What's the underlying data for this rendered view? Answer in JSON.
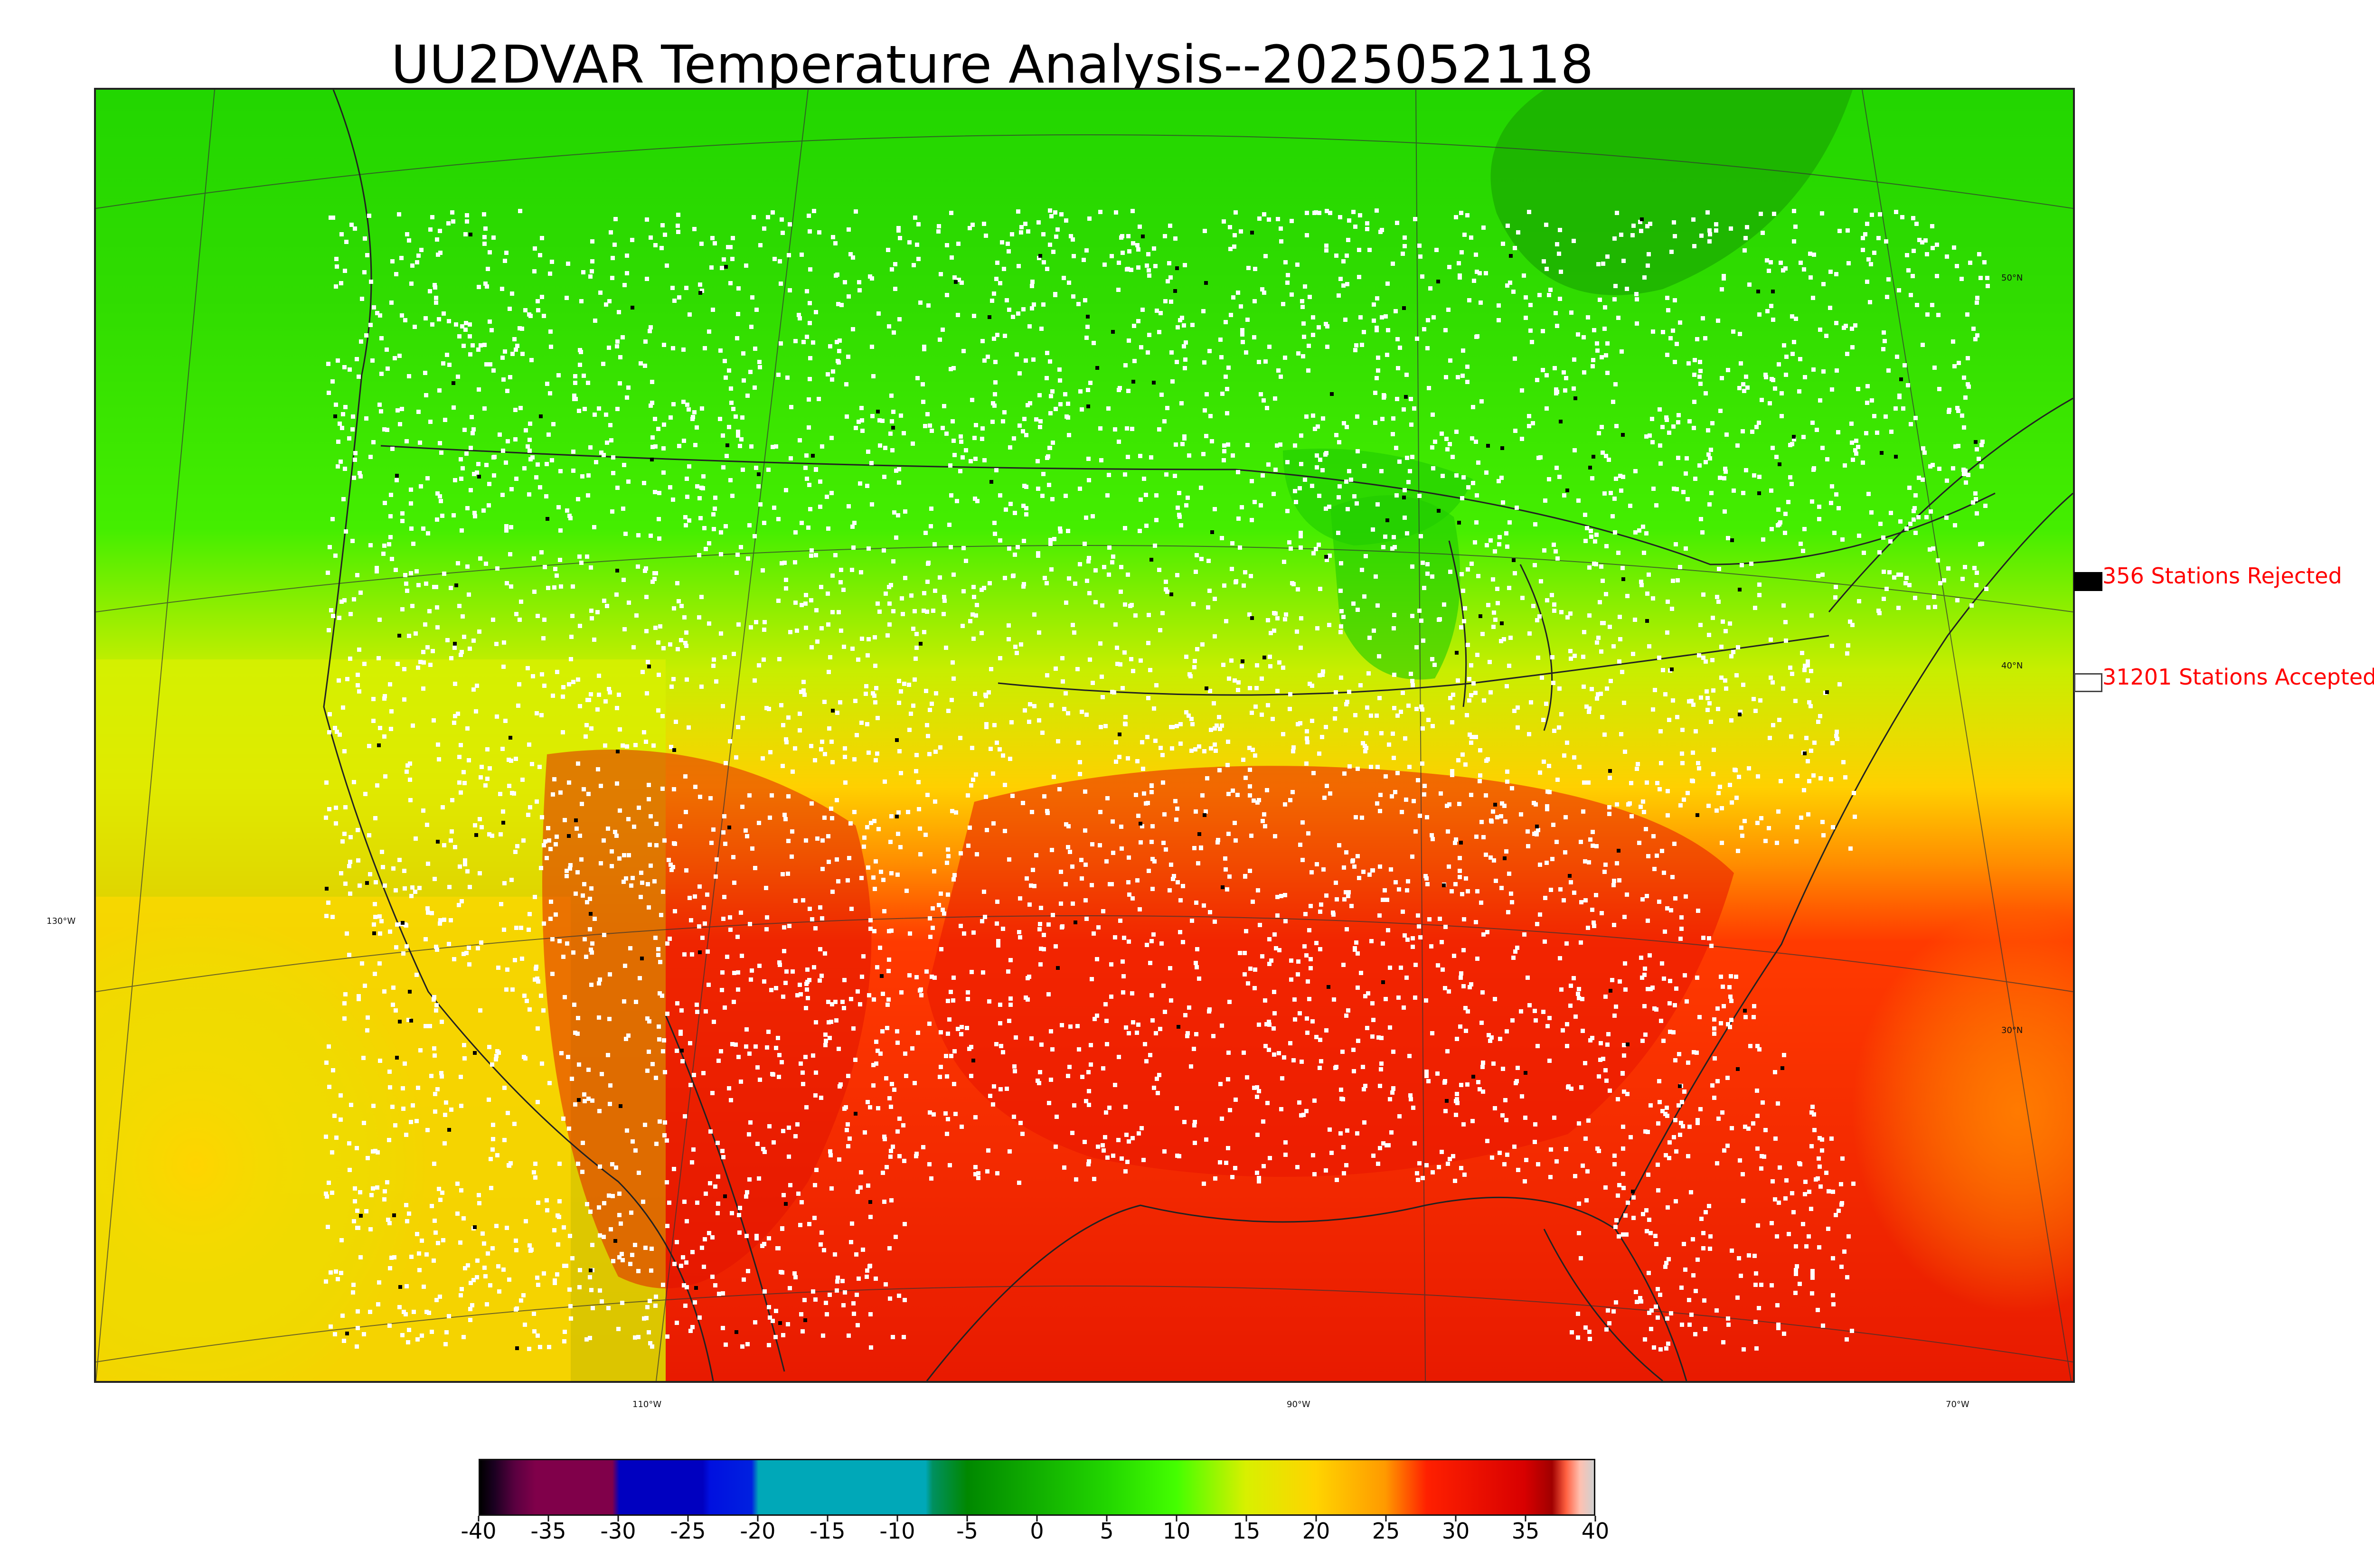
{
  "title": "UU2DVAR Temperature Analysis--2025052118",
  "map": {
    "lat_labels": [
      "50°N",
      "40°N",
      "30°N"
    ],
    "lon_labels": [
      "130°W",
      "110°W",
      "90°W",
      "70°W"
    ],
    "colors": {
      "cold_north": "#22d600",
      "mid": "#d8f000",
      "warm": "#ffa800",
      "hot": "#e81a00",
      "station_accepted": "#ffffff",
      "station_rejected": "#000000"
    }
  },
  "legend": {
    "rejected_label": "356 Stations Rejected",
    "accepted_label": "31201 Stations Accepted"
  },
  "colorbar": {
    "ticks": [
      "-40",
      "-35",
      "-30",
      "-25",
      "-20",
      "-15",
      "-10",
      "-5",
      "0",
      "5",
      "10",
      "15",
      "20",
      "25",
      "30",
      "35",
      "40"
    ],
    "range": [
      -40,
      40
    ],
    "stops": [
      {
        "v": -40,
        "c": "#000000"
      },
      {
        "v": -39,
        "c": "#1a0020"
      },
      {
        "v": -37.5,
        "c": "#5a0040"
      },
      {
        "v": -36,
        "c": "#80004a"
      },
      {
        "v": -30.5,
        "c": "#80004a"
      },
      {
        "v": -30,
        "c": "#0000c0"
      },
      {
        "v": -24,
        "c": "#0000c0"
      },
      {
        "v": -23.5,
        "c": "#0010e0"
      },
      {
        "v": -20.5,
        "c": "#0020e0"
      },
      {
        "v": -20,
        "c": "#00a8b8"
      },
      {
        "v": -8,
        "c": "#00a8b8"
      },
      {
        "v": -7.5,
        "c": "#009060"
      },
      {
        "v": -5,
        "c": "#008800"
      },
      {
        "v": 5,
        "c": "#22d600"
      },
      {
        "v": 10,
        "c": "#44ff00"
      },
      {
        "v": 15,
        "c": "#d8f000"
      },
      {
        "v": 20,
        "c": "#ffd400"
      },
      {
        "v": 25,
        "c": "#ff9a00"
      },
      {
        "v": 28,
        "c": "#ff2000"
      },
      {
        "v": 35,
        "c": "#d80000"
      },
      {
        "v": 37,
        "c": "#a00000"
      },
      {
        "v": 38,
        "c": "#ff6040"
      },
      {
        "v": 39,
        "c": "#ffc0b0"
      },
      {
        "v": 40,
        "c": "#d0d0d0"
      }
    ]
  }
}
